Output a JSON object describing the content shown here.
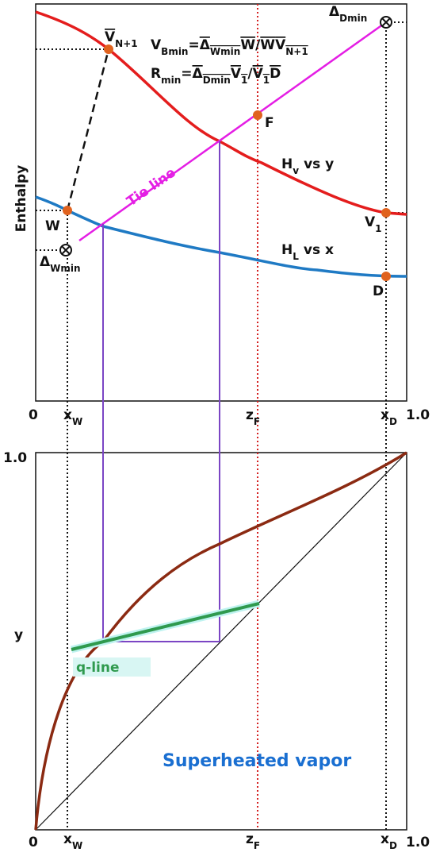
{
  "enthalpy_panel": {
    "y_axis_label": "Enthalpy",
    "x_axis": {
      "zero": "0",
      "x_w": "x",
      "x_w_sub": "W",
      "z_f": "z",
      "z_f_sub": "F",
      "x_d": "x",
      "x_d_sub": "D",
      "one": "1.0"
    },
    "points": {
      "v_n1": "V",
      "v_n1_sub": "N+1",
      "w": "W",
      "delta_wmin": "Δ",
      "delta_wmin_sub": "Wmin",
      "delta_dmin": "Δ",
      "delta_dmin_sub": "Dmin",
      "f": "F",
      "v1": "V",
      "v1_sub": "1",
      "d": "D"
    },
    "curves": {
      "hv": "H",
      "hv_sub": "v",
      "hv_rest": "vs y",
      "hl": "H",
      "hl_sub": "L",
      "hl_rest": "vs x",
      "tie_line": "Tie line"
    },
    "equations": {
      "vbmin": [
        "V",
        "Bmin",
        "=",
        "Δ",
        "Wmin",
        "W",
        "/",
        "W",
        "V",
        "N+1"
      ],
      "rmin": [
        "R",
        "min",
        "=",
        "Δ",
        "Dmin",
        "V",
        "1",
        "/",
        "V",
        "1",
        "D"
      ]
    }
  },
  "xy_panel": {
    "y_axis_label": "y",
    "y_top": "1.0",
    "x_axis": {
      "zero": "0",
      "x_w": "x",
      "x_w_sub": "W",
      "z_f": "z",
      "z_f_sub": "F",
      "x_d": "x",
      "x_d_sub": "D",
      "one": "1.0"
    },
    "q_line": "q-line",
    "condition": "Superheated vapor"
  }
}
